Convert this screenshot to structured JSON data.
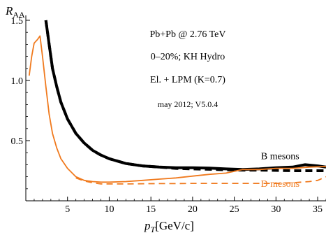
{
  "chart_data": {
    "type": "line",
    "title": "",
    "xlabel": "p_T[GeV/c]",
    "ylabel": "R_AA",
    "xlim": [
      0,
      36
    ],
    "ylim": [
      0,
      1.5
    ],
    "x_ticks": [
      5,
      10,
      15,
      20,
      25,
      30,
      35
    ],
    "y_ticks": [
      0.5,
      1.0,
      1.5
    ],
    "y_tick_labels": [
      "0.5",
      "1.0",
      "1.5"
    ],
    "grid": false,
    "annotations": [
      "Pb+Pb @ 2.76 TeV",
      "0–20%; KH Hydro",
      "El. + LPM (K=0.7)",
      "may 2012; V5.0.4"
    ],
    "series": [
      {
        "name": "B mesons",
        "color": "#000000",
        "style": "solid",
        "points": [
          [
            2.4,
            1.5
          ],
          [
            2.8,
            1.3
          ],
          [
            3.2,
            1.1
          ],
          [
            3.7,
            0.95
          ],
          [
            4.2,
            0.82
          ],
          [
            5,
            0.68
          ],
          [
            6,
            0.56
          ],
          [
            7,
            0.48
          ],
          [
            8,
            0.42
          ],
          [
            9,
            0.38
          ],
          [
            10,
            0.35
          ],
          [
            12,
            0.31
          ],
          [
            14,
            0.29
          ],
          [
            16,
            0.28
          ],
          [
            18,
            0.275
          ],
          [
            20,
            0.275
          ],
          [
            22,
            0.272
          ],
          [
            24,
            0.265
          ],
          [
            26,
            0.26
          ],
          [
            28,
            0.265
          ],
          [
            30,
            0.275
          ],
          [
            32,
            0.28
          ],
          [
            33.5,
            0.3
          ],
          [
            35,
            0.29
          ],
          [
            36,
            0.28
          ]
        ]
      },
      {
        "name": "",
        "color": "#000000",
        "style": "dashed",
        "points": [
          [
            2.4,
            1.5
          ],
          [
            2.8,
            1.3
          ],
          [
            3.2,
            1.1
          ],
          [
            3.7,
            0.95
          ],
          [
            4.2,
            0.82
          ],
          [
            5,
            0.68
          ],
          [
            6,
            0.56
          ],
          [
            7,
            0.48
          ],
          [
            8,
            0.42
          ],
          [
            9,
            0.38
          ],
          [
            10,
            0.35
          ],
          [
            12,
            0.31
          ],
          [
            14,
            0.29
          ],
          [
            16,
            0.28
          ],
          [
            18,
            0.27
          ],
          [
            20,
            0.265
          ],
          [
            22,
            0.262
          ],
          [
            24,
            0.258
          ],
          [
            26,
            0.255
          ],
          [
            28,
            0.255
          ],
          [
            30,
            0.253
          ],
          [
            32,
            0.25
          ],
          [
            34,
            0.25
          ],
          [
            36,
            0.25
          ]
        ]
      },
      {
        "name": "D mesons",
        "color": "#f07a1e",
        "style": "solid",
        "points": [
          [
            0.4,
            1.04
          ],
          [
            0.7,
            1.2
          ],
          [
            1,
            1.31
          ],
          [
            1.4,
            1.34
          ],
          [
            1.7,
            1.37
          ],
          [
            2,
            1.2
          ],
          [
            2.4,
            0.95
          ],
          [
            2.8,
            0.72
          ],
          [
            3.2,
            0.56
          ],
          [
            3.7,
            0.44
          ],
          [
            4.2,
            0.35
          ],
          [
            5,
            0.27
          ],
          [
            6,
            0.2
          ],
          [
            7,
            0.17
          ],
          [
            8,
            0.16
          ],
          [
            9,
            0.155
          ],
          [
            10,
            0.155
          ],
          [
            12,
            0.16
          ],
          [
            14,
            0.17
          ],
          [
            16,
            0.18
          ],
          [
            18,
            0.19
          ],
          [
            20,
            0.205
          ],
          [
            22,
            0.22
          ],
          [
            24,
            0.23
          ],
          [
            25,
            0.245
          ],
          [
            26,
            0.26
          ],
          [
            28,
            0.26
          ],
          [
            30,
            0.27
          ],
          [
            32,
            0.27
          ],
          [
            34,
            0.28
          ],
          [
            36,
            0.285
          ]
        ]
      },
      {
        "name": "",
        "color": "#f07a1e",
        "style": "dashed",
        "points": [
          [
            6,
            0.19
          ],
          [
            7,
            0.165
          ],
          [
            8,
            0.15
          ],
          [
            9,
            0.14
          ],
          [
            10,
            0.14
          ],
          [
            12,
            0.14
          ],
          [
            14,
            0.142
          ],
          [
            16,
            0.143
          ],
          [
            18,
            0.143
          ],
          [
            20,
            0.145
          ],
          [
            22,
            0.145
          ],
          [
            24,
            0.145
          ],
          [
            26,
            0.145
          ],
          [
            28,
            0.145
          ],
          [
            30,
            0.145
          ],
          [
            32,
            0.15
          ],
          [
            34,
            0.16
          ],
          [
            35,
            0.17
          ],
          [
            36,
            0.2
          ]
        ]
      }
    ],
    "series_labels": [
      {
        "text": "B mesons",
        "color": "#000000",
        "at": [
          30.5,
          0.345
        ]
      },
      {
        "text": "D mesons",
        "color": "#f07a1e",
        "at": [
          30.5,
          0.115
        ]
      }
    ]
  }
}
